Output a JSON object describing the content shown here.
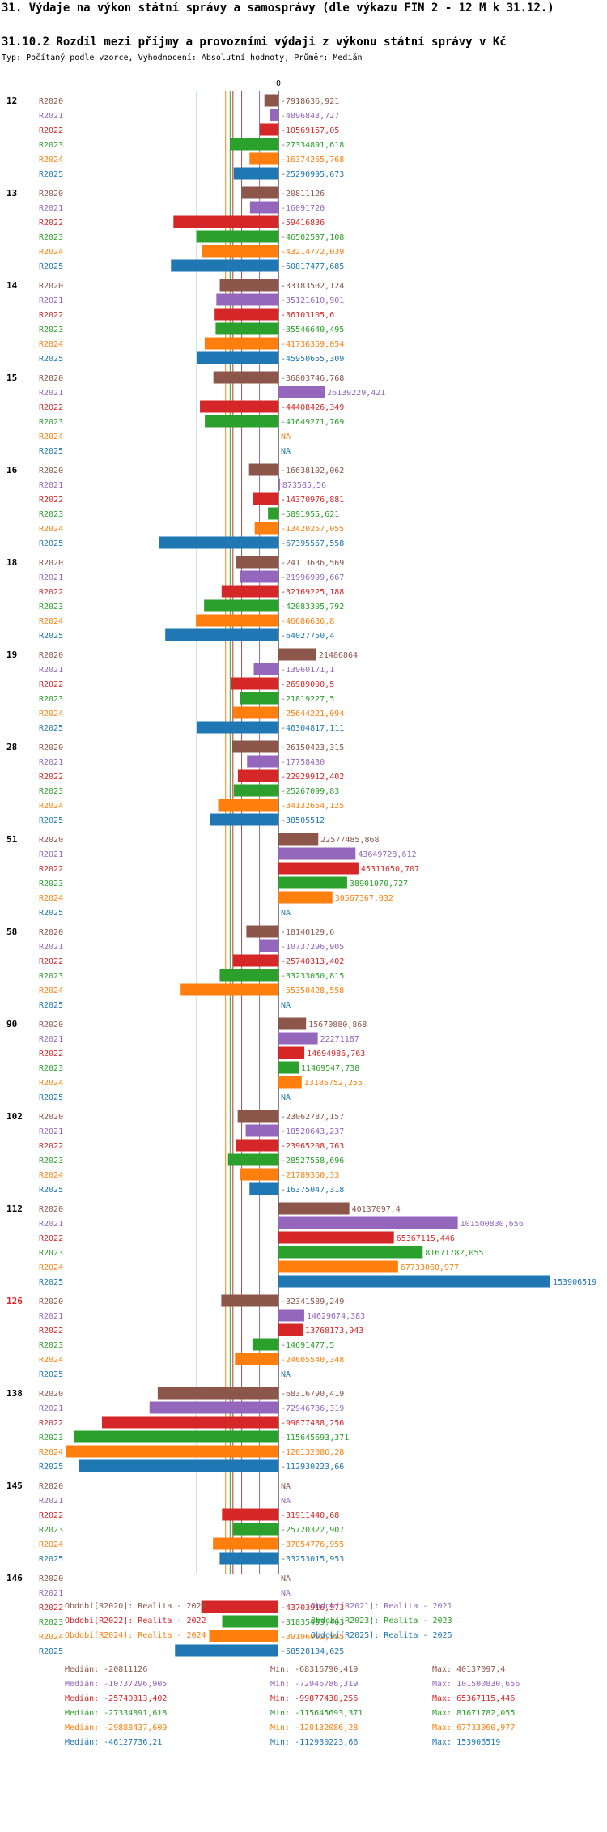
{
  "page": {
    "title": "31. Výdaje na výkon státní správy a samosprávy (dle výkazu FIN 2 - 12 M k 31.12.)",
    "subtitle": "31.10.2 Rozdíl mezi příjmy a provozními výdaji z výkonu státní správy v Kč",
    "meta": "Typ: Počítaný podle vzorce, Vyhodnocení: Absolutní hodnoty, Průměr: Medián"
  },
  "colors": {
    "R2020": "#8c564b",
    "R2021": "#9467bd",
    "R2022": "#d62728",
    "R2023": "#2ca02c",
    "R2024": "#ff7f0e",
    "R2025": "#1f77b4"
  },
  "chart_data": {
    "type": "bar",
    "orientation": "horizontal",
    "zero_label": "0",
    "series_names": [
      "R2020",
      "R2021",
      "R2022",
      "R2023",
      "R2024",
      "R2025"
    ],
    "na_label": "NA",
    "xlim": [
      -120132086.28,
      153906519
    ],
    "groups": [
      {
        "id": "12",
        "highlight": false,
        "values": [
          -7918636.921,
          -4896843.727,
          -10569157.05,
          -27334891.618,
          -16374265.768,
          -25290995.673
        ],
        "labels": [
          "-7918636,921",
          "-4896843,727",
          "-10569157,05",
          "-27334891,618",
          "-16374265,768",
          "-25290995,673"
        ]
      },
      {
        "id": "13",
        "highlight": false,
        "values": [
          -20811126,
          -16091720,
          -59416836,
          -46502507.108,
          -43214772.039,
          -60817477.685
        ],
        "labels": [
          "-20811126",
          "-16091720",
          "-59416836",
          "-46502507,108",
          "-43214772,039",
          "-60817477,685"
        ]
      },
      {
        "id": "14",
        "highlight": false,
        "values": [
          -33183502.124,
          -35121610.901,
          -36103105.6,
          -35546640.495,
          -41736359.054,
          -45950655.309
        ],
        "labels": [
          "-33183502,124",
          "-35121610,901",
          "-36103105,6",
          "-35546640,495",
          "-41736359,054",
          "-45950655,309"
        ]
      },
      {
        "id": "15",
        "highlight": false,
        "values": [
          -36803746.768,
          26139229.421,
          -44408426.349,
          -41649271.769,
          null,
          null
        ],
        "labels": [
          "-36803746,768",
          "26139229,421",
          "-44408426,349",
          "-41649271,769",
          "NA",
          "NA"
        ]
      },
      {
        "id": "16",
        "highlight": false,
        "values": [
          -16638102.062,
          873585.56,
          -14370976.881,
          -5891955.621,
          -13420257.055,
          -67395557.558
        ],
        "labels": [
          "-16638102,062",
          "873585,56",
          "-14370976,881",
          "-5891955,621",
          "-13420257,055",
          "-67395557,558"
        ]
      },
      {
        "id": "18",
        "highlight": false,
        "values": [
          -24113636.569,
          -21996999.667,
          -32169225.188,
          -42083305.792,
          -46686636.8,
          -64027750.4
        ],
        "labels": [
          "-24113636,569",
          "-21996999,667",
          "-32169225,188",
          "-42083305,792",
          "-46686636,8",
          "-64027750,4"
        ]
      },
      {
        "id": "19",
        "highlight": false,
        "values": [
          21486864,
          -13960171.1,
          -26989090.5,
          -21819227.5,
          -25644221.094,
          -46304817.111
        ],
        "labels": [
          "21486864",
          "-13960171,1",
          "-26989090,5",
          "-21819227,5",
          "-25644221,094",
          "-46304817,111"
        ]
      },
      {
        "id": "28",
        "highlight": false,
        "values": [
          -26150423.315,
          -17758430,
          -22929912.402,
          -25267099.83,
          -34132654.125,
          -38505512
        ],
        "labels": [
          "-26150423,315",
          "-17758430",
          "-22929912,402",
          "-25267099,83",
          "-34132654,125",
          "-38505512"
        ]
      },
      {
        "id": "51",
        "highlight": false,
        "values": [
          22577485.868,
          43649728.612,
          45311650.707,
          38901070.727,
          30567367.032,
          null
        ],
        "labels": [
          "22577485,868",
          "43649728,612",
          "45311650,707",
          "38901070,727",
          "30567367,032",
          "NA"
        ]
      },
      {
        "id": "58",
        "highlight": false,
        "values": [
          -18140129.6,
          -10737296.905,
          -25740313.402,
          -33233050.815,
          -55350428.558,
          null
        ],
        "labels": [
          "-18140129,6",
          "-10737296,905",
          "-25740313,402",
          "-33233050,815",
          "-55350428,558",
          "NA"
        ]
      },
      {
        "id": "90",
        "highlight": false,
        "values": [
          15670880.868,
          22271187,
          14694986.763,
          11469547.738,
          13185752.255,
          null
        ],
        "labels": [
          "15670880,868",
          "22271187",
          "14694986,763",
          "11469547,738",
          "13185752,255",
          "NA"
        ]
      },
      {
        "id": "102",
        "highlight": false,
        "values": [
          -23062787.157,
          -18520643.237,
          -23965208.763,
          -28527558.696,
          -21789360.33,
          -16375047.318
        ],
        "labels": [
          "-23062787,157",
          "-18520643,237",
          "-23965208,763",
          "-28527558,696",
          "-21789360,33",
          "-16375047,318"
        ]
      },
      {
        "id": "112",
        "highlight": false,
        "values": [
          40137097.4,
          101500830.656,
          65367115.446,
          81671782.055,
          67733060.977,
          153906519
        ],
        "labels": [
          "40137097,4",
          "101500830,656",
          "65367115,446",
          "81671782,055",
          "67733060,977",
          "153906519"
        ]
      },
      {
        "id": "126",
        "highlight": true,
        "values": [
          -32341589.249,
          14629674.383,
          13768173.943,
          -14691477.5,
          -24605540.348,
          null
        ],
        "labels": [
          "-32341589,249",
          "14629674,383",
          "13768173,943",
          "-14691477,5",
          "-24605540,348",
          "NA"
        ]
      },
      {
        "id": "138",
        "highlight": false,
        "values": [
          -68316790.419,
          -72946786.319,
          -99877438.256,
          -115645693.371,
          -120132086.28,
          -112930223.66
        ],
        "labels": [
          "-68316790,419",
          "-72946786,319",
          "-99877438,256",
          "-115645693,371",
          "-120132086,28",
          "-112930223,66"
        ]
      },
      {
        "id": "145",
        "highlight": false,
        "values": [
          null,
          null,
          -31911440.68,
          -25720322.907,
          -37054776.955,
          -33253015.953
        ],
        "labels": [
          "NA",
          "NA",
          "-31911440,68",
          "-25720322,907",
          "-37054776,955",
          "-33253015,953"
        ]
      },
      {
        "id": "146",
        "highlight": false,
        "values": [
          null,
          null,
          -43703916.573,
          -31835433.463,
          -39196062.585,
          -58528134.625
        ],
        "labels": [
          "NA",
          "NA",
          "-43703916,573",
          "-31835433,463",
          "-39196062,585",
          "-58528134,625"
        ]
      }
    ],
    "median_lines": [
      -20811126,
      -10737296.905,
      -25740313.402,
      -27334891.618,
      -29888437.609,
      -46127736.21
    ],
    "legend": [
      "Období[R2020]: Realita - 2020",
      "Období[R2021]: Realita - 2021",
      "Období[R2022]: Realita - 2022",
      "Období[R2023]: Realita - 2023",
      "Období[R2024]: Realita - 2024",
      "Období[R2025]: Realita - 2025"
    ],
    "stats": [
      {
        "median": "Medián: -20811126",
        "min": "Min: -68316790,419",
        "max": "Max: 40137097,4"
      },
      {
        "median": "Medián: -10737296,905",
        "min": "Min: -72946786,319",
        "max": "Max: 101500830,656"
      },
      {
        "median": "Medián: -25740313,402",
        "min": "Min: -99877438,256",
        "max": "Max: 65367115,446"
      },
      {
        "median": "Medián: -27334891,618",
        "min": "Min: -115645693,371",
        "max": "Max: 81671782,055"
      },
      {
        "median": "Medián: -29888437,609",
        "min": "Min: -120132086,28",
        "max": "Max: 67733060,977"
      },
      {
        "median": "Medián: -46127736,21",
        "min": "Min: -112930223,66",
        "max": "Max: 153906519"
      }
    ]
  }
}
